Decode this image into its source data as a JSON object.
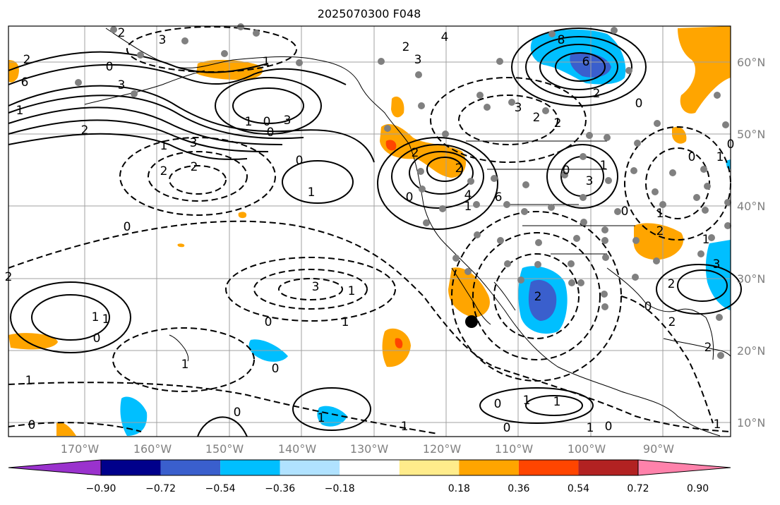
{
  "title": "2025070300 F048",
  "map": {
    "lon_labels": [
      "170°W",
      "160°W",
      "150°W",
      "140°W",
      "130°W",
      "120°W",
      "110°W",
      "100°W",
      "90°W"
    ],
    "lat_labels": [
      "60°N",
      "50°N",
      "40°N",
      "30°N",
      "20°N",
      "10°N"
    ]
  },
  "colorbar": {
    "ticks": [
      "−0.90",
      "−0.72",
      "−0.54",
      "−0.36",
      "−0.18",
      "0.18",
      "0.36",
      "0.54",
      "0.72",
      "0.90"
    ],
    "colors": [
      "#9a32cd",
      "#00008b",
      "#3a5fcd",
      "#00bfff",
      "#b0e2ff",
      "#ffffff",
      "#ffec8b",
      "#ffa500",
      "#ff4500",
      "#b22222",
      "#ff82ab"
    ]
  },
  "contour_labels": [
    "2",
    "3",
    "2",
    "0",
    "1",
    "2",
    "4",
    "3",
    "6",
    "8",
    "6",
    "3",
    "1",
    "2",
    "3",
    "0",
    "1",
    "0",
    "1",
    "3",
    "2",
    "2",
    "0",
    "1",
    "0",
    "2",
    "1",
    "2",
    "4",
    "6",
    "2",
    "0",
    "3",
    "2",
    "0",
    "3",
    "1",
    "2",
    "3",
    "1",
    "3",
    "2",
    "2",
    "0",
    "1",
    "0",
    "2",
    "1",
    "1",
    "0",
    "0",
    "2",
    "1",
    "1",
    "0",
    "1",
    "0",
    "1",
    "0",
    "1",
    "1",
    "0",
    "1",
    "0",
    "1",
    "2",
    "0",
    "1",
    "0",
    "0",
    "1",
    "2",
    "1",
    "0"
  ],
  "colors": {
    "land": "#ffffff",
    "ocean": "#ffffff",
    "grid": "#a0a0a0",
    "contour": "#000000",
    "marker": "#000000",
    "station": "#808080",
    "axis_label": "#808080"
  }
}
